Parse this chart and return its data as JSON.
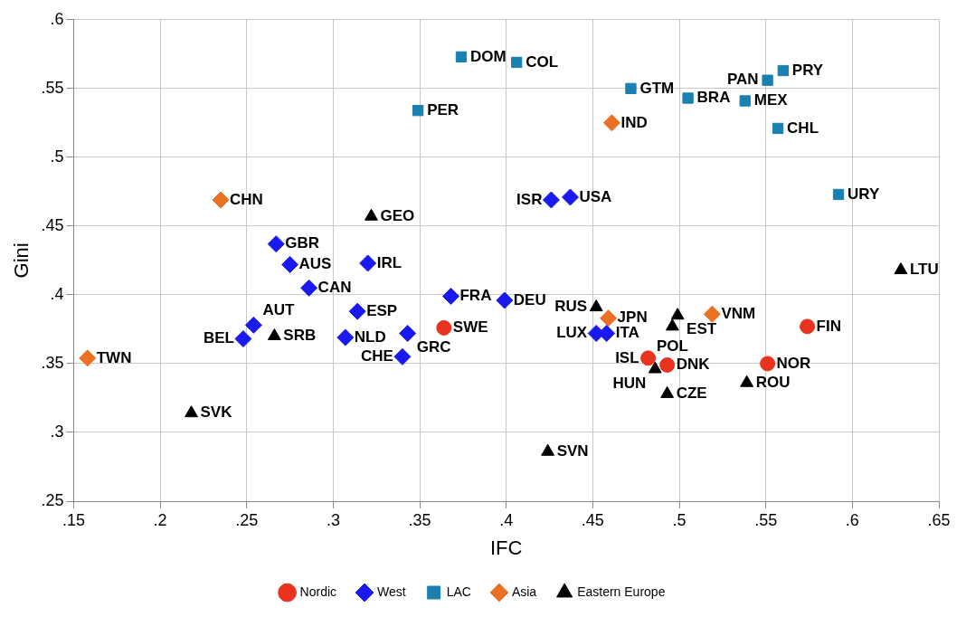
{
  "chart_data": {
    "type": "scatter",
    "xlabel": "IFC",
    "ylabel": "Gini",
    "xlim": [
      0.15,
      0.65
    ],
    "ylim": [
      0.25,
      0.6
    ],
    "xticks": [
      {
        "value": 0.15,
        "label": ".15"
      },
      {
        "value": 0.2,
        "label": ".2"
      },
      {
        "value": 0.25,
        "label": ".25"
      },
      {
        "value": 0.3,
        "label": ".3"
      },
      {
        "value": 0.35,
        "label": ".35"
      },
      {
        "value": 0.4,
        "label": ".4"
      },
      {
        "value": 0.45,
        "label": ".45"
      },
      {
        "value": 0.5,
        "label": ".5"
      },
      {
        "value": 0.55,
        "label": ".55"
      },
      {
        "value": 0.6,
        "label": ".6"
      },
      {
        "value": 0.65,
        "label": ".65"
      }
    ],
    "yticks": [
      {
        "value": 0.25,
        "label": ".25"
      },
      {
        "value": 0.3,
        "label": ".3"
      },
      {
        "value": 0.35,
        "label": ".35"
      },
      {
        "value": 0.4,
        "label": ".4"
      },
      {
        "value": 0.45,
        "label": ".45"
      },
      {
        "value": 0.5,
        "label": ".5"
      },
      {
        "value": 0.55,
        "label": ".55"
      },
      {
        "value": 0.6,
        "label": ".6"
      }
    ],
    "grid": true,
    "legend": "bottom",
    "series": [
      {
        "name": "Nordic",
        "color": "#e8331f",
        "marker": "circle",
        "x": [
          0.364,
          0.482,
          0.493,
          0.551,
          0.574
        ],
        "values": [
          0.376,
          0.354,
          0.349,
          0.35,
          0.377
        ],
        "value_labels": [
          "SWE",
          "ISL",
          "DNK",
          "NOR",
          "FIN"
        ]
      },
      {
        "name": "West",
        "color": "#1a1aef",
        "marker": "diamond",
        "x": [
          0.267,
          0.275,
          0.32,
          0.286,
          0.248,
          0.254,
          0.314,
          0.307,
          0.343,
          0.34,
          0.368,
          0.399,
          0.426,
          0.437,
          0.452,
          0.458
        ],
        "values": [
          0.437,
          0.422,
          0.423,
          0.405,
          0.368,
          0.378,
          0.388,
          0.369,
          0.372,
          0.355,
          0.399,
          0.396,
          0.469,
          0.471,
          0.372,
          0.372
        ],
        "value_labels": [
          "GBR",
          "AUS",
          "IRL",
          "CAN",
          "BEL",
          "AUT",
          "ESP",
          "NLD",
          "GRC",
          "CHE",
          "FRA",
          "DEU",
          "ISR",
          "USA",
          "LUX",
          "ITA"
        ]
      },
      {
        "name": "LAC",
        "color": "#1a80b0",
        "marker": "square",
        "x": [
          0.374,
          0.406,
          0.349,
          0.472,
          0.505,
          0.538,
          0.551,
          0.56,
          0.557,
          0.592
        ],
        "values": [
          0.573,
          0.569,
          0.534,
          0.55,
          0.543,
          0.541,
          0.556,
          0.563,
          0.521,
          0.473
        ],
        "value_labels": [
          "DOM",
          "COL",
          "PER",
          "GTM",
          "BRA",
          "MEX",
          "PAN",
          "PRY",
          "CHL",
          "URY"
        ]
      },
      {
        "name": "Asia",
        "color": "#ea7024",
        "marker": "diamond",
        "x": [
          0.235,
          0.158,
          0.461,
          0.459,
          0.519
        ],
        "values": [
          0.469,
          0.354,
          0.525,
          0.383,
          0.386
        ],
        "value_labels": [
          "CHN",
          "TWN",
          "IND",
          "JPN",
          "VNM"
        ]
      },
      {
        "name": "Eastern Europe",
        "color": "#000000",
        "marker": "triangle",
        "x": [
          0.322,
          0.218,
          0.266,
          0.452,
          0.499,
          0.496,
          0.486,
          0.493,
          0.539,
          0.424,
          0.628
        ],
        "values": [
          0.457,
          0.314,
          0.37,
          0.391,
          0.385,
          0.377,
          0.346,
          0.328,
          0.336,
          0.286,
          0.418
        ],
        "value_labels": [
          "GEO",
          "SVK",
          "SRB",
          "RUS",
          "EST",
          "POL",
          "HUN",
          "CZE",
          "ROU",
          "SVN",
          "LTU"
        ]
      }
    ]
  }
}
